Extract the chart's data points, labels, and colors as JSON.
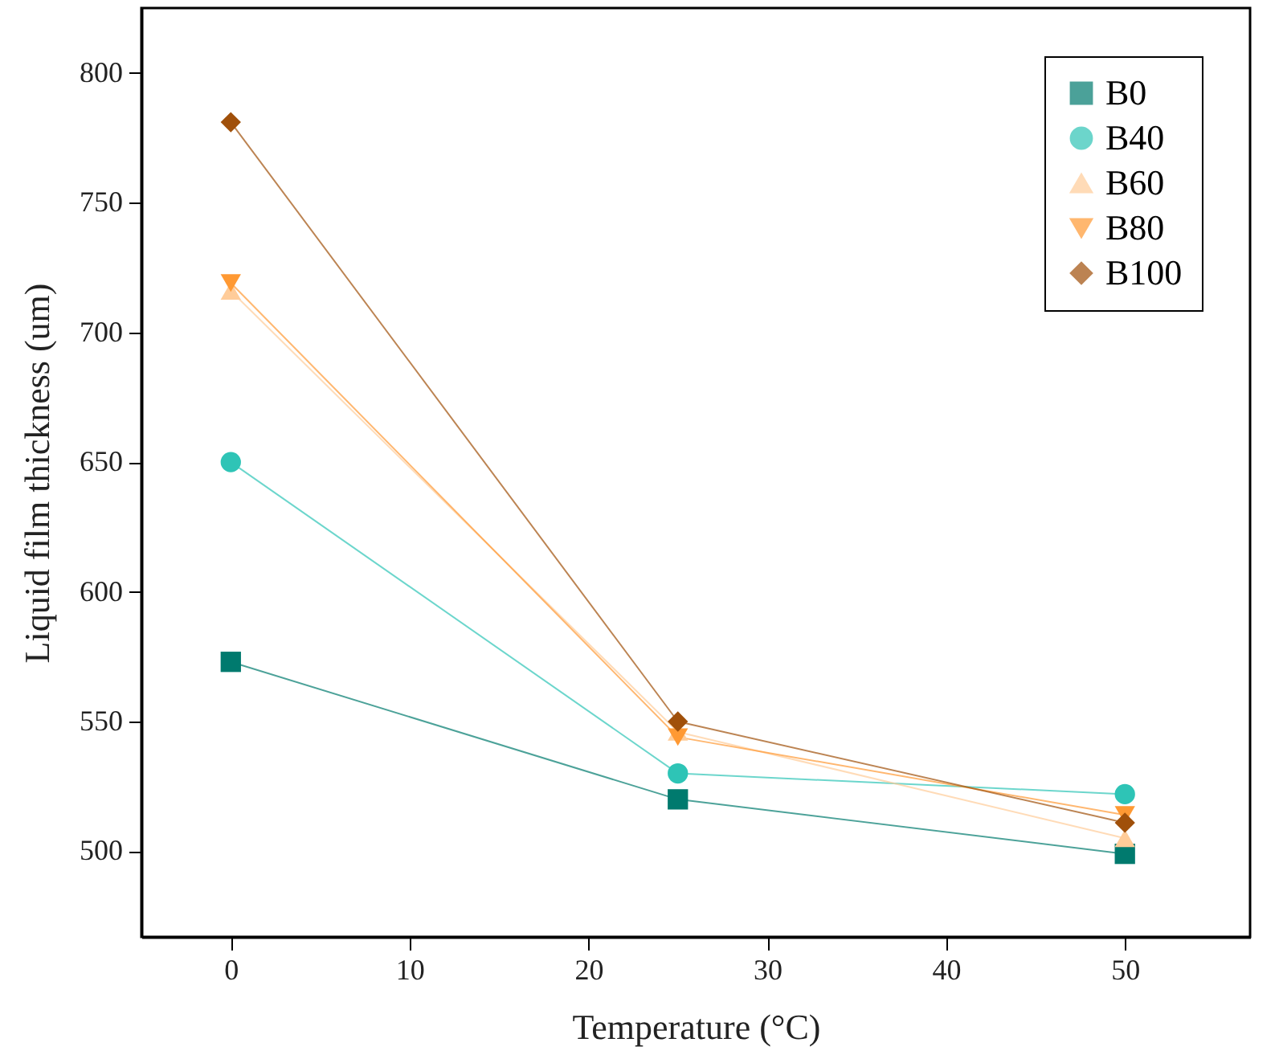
{
  "chart_data": {
    "type": "line",
    "xlabel": "Temperature (°C)",
    "ylabel": "Liquid film thickness (um)",
    "x": [
      0,
      25,
      50
    ],
    "series": [
      {
        "name": "B0",
        "color": "#007a6e",
        "marker": "square",
        "values": [
          573,
          520,
          499
        ]
      },
      {
        "name": "B40",
        "color": "#2ec4b6",
        "marker": "circle",
        "values": [
          650,
          530,
          522
        ]
      },
      {
        "name": "B60",
        "color": "#ffcc99",
        "marker": "triangle",
        "values": [
          716,
          546,
          505
        ]
      },
      {
        "name": "B80",
        "color": "#ff9933",
        "marker": "triangle-down",
        "values": [
          719,
          544,
          514
        ]
      },
      {
        "name": "B100",
        "color": "#a0500a",
        "marker": "diamond",
        "values": [
          781,
          550,
          511
        ]
      }
    ],
    "xlim": [
      -5,
      57
    ],
    "xticks": [
      0,
      10,
      20,
      30,
      40,
      50
    ],
    "ylim": [
      467,
      825
    ],
    "yticks": [
      500,
      550,
      600,
      650,
      700,
      750,
      800
    ],
    "grid": false,
    "legend": "top right"
  }
}
